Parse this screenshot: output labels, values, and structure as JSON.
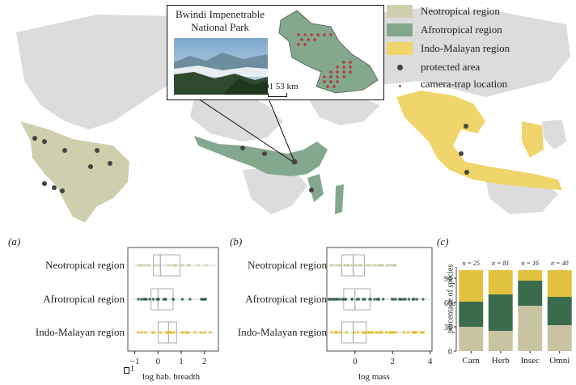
{
  "colors": {
    "neotropical": "#cfcfae",
    "afrotropical": "#83a88e",
    "indomalayan": "#f0d46c",
    "protected_area": "#444444",
    "camera_trap": "#b23a3a",
    "box_neo": "#cfcfae",
    "box_afro": "#2f5f45",
    "box_indo": "#e6bf2e",
    "bar_neo": "#c9c3a2",
    "bar_afro": "#3a6b4c",
    "bar_indo": "#e3c23f"
  },
  "map": {
    "inset_title_line1": "Bwindi Impenetrable",
    "inset_title_line2": "National Park",
    "scale_label": "01 53 km",
    "legend": [
      {
        "label": "Neotropical region",
        "kind": "swatch",
        "color": "#cfcfae"
      },
      {
        "label": "Afrotropical region",
        "kind": "swatch",
        "color": "#83a88e"
      },
      {
        "label": "Indo-Malayan region",
        "kind": "swatch",
        "color": "#f0d46c"
      },
      {
        "label": "protected area",
        "kind": "dot",
        "color": "#444444"
      },
      {
        "label": "camera-trap location",
        "kind": "small-dot",
        "color": "#b23a3a"
      }
    ]
  },
  "panels": {
    "a": {
      "tag": "(a)",
      "xlabel": "log hab. breadth",
      "ticks": [
        "−1",
        "0",
        "1",
        "2"
      ],
      "legend_key": "1"
    },
    "b": {
      "tag": "(b)",
      "xlabel": "log mass",
      "ticks": [
        "0",
        "2",
        "4"
      ]
    },
    "c": {
      "tag": "(c)",
      "ylabel": "percentage of species"
    }
  },
  "chart_data": [
    {
      "type": "box",
      "panel": "a",
      "xlabel": "log hab. breadth",
      "categories": [
        "Neotropical region",
        "Afrotropical region",
        "Indo-Malayan region"
      ],
      "xlim": [
        -1.3,
        2.6
      ],
      "x_ticks": [
        -1,
        0,
        1,
        2
      ],
      "boxes": [
        {
          "q1": -0.2,
          "median": 0.1,
          "q3": 0.95,
          "lo": -1.0,
          "hi": 2.5
        },
        {
          "q1": -0.3,
          "median": 0.0,
          "q3": 0.65,
          "lo": -1.1,
          "hi": 2.1
        },
        {
          "q1": 0.0,
          "median": 0.45,
          "q3": 0.8,
          "lo": -1.0,
          "hi": 2.4
        }
      ]
    },
    {
      "type": "box",
      "panel": "b",
      "xlabel": "log mass",
      "categories": [
        "Neotropical region",
        "Afrotropical region",
        "Indo-Malayan region"
      ],
      "xlim": [
        -1.5,
        4.1
      ],
      "x_ticks": [
        0,
        2,
        4
      ],
      "boxes": [
        {
          "q1": -0.7,
          "median": -0.1,
          "q3": 0.5,
          "lo": -1.3,
          "hi": 2.2
        },
        {
          "q1": -0.6,
          "median": 0.0,
          "q3": 0.8,
          "lo": -1.4,
          "hi": 4.0
        },
        {
          "q1": -0.7,
          "median": -0.1,
          "q3": 0.6,
          "lo": -1.4,
          "hi": 3.7
        }
      ]
    },
    {
      "type": "stacked-bar",
      "panel": "c",
      "ylabel": "percentage of species",
      "categories": [
        "Carn",
        "Herb",
        "Insec",
        "Omni"
      ],
      "n_labels": [
        "n = 25",
        "n = 81",
        "n = 16",
        "n = 40"
      ],
      "ylim": [
        0,
        100
      ],
      "y_ticks": [
        0,
        30,
        60,
        90
      ],
      "series": [
        {
          "values": [
            30,
            25,
            56,
            32
          ]
        },
        {
          "values": [
            31,
            45,
            31,
            35
          ]
        },
        {
          "values": [
            39,
            30,
            13,
            33
          ]
        }
      ]
    }
  ]
}
